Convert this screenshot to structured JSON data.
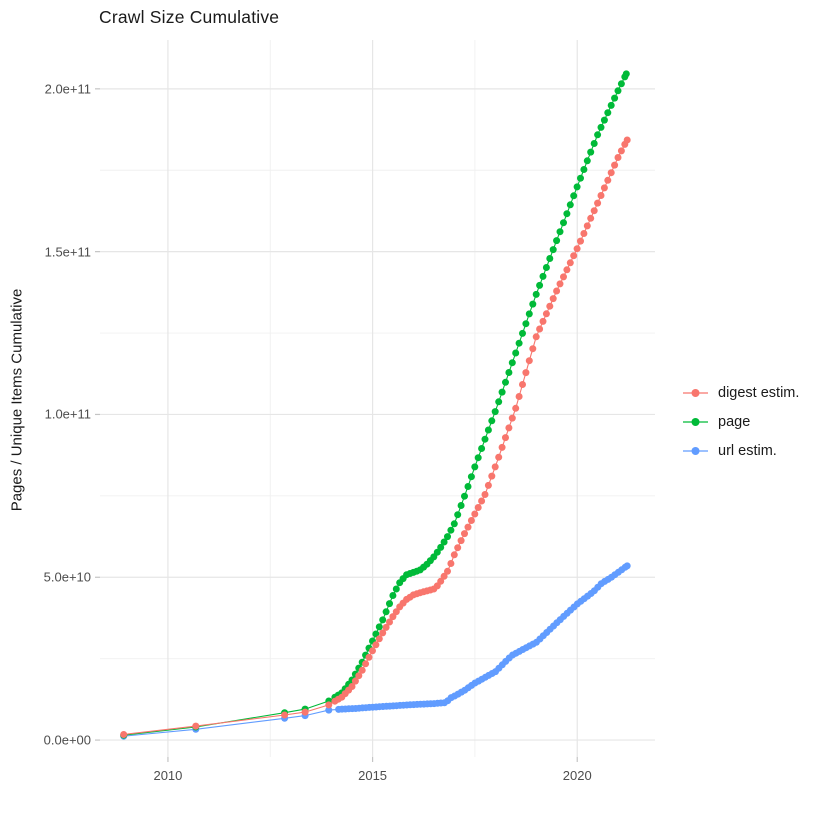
{
  "chart": {
    "title": "Crawl Size Cumulative",
    "y_axis_label": "Pages / Unique Items Cumulative",
    "x_ticks": [
      {
        "label": "2010",
        "year": 2010
      },
      {
        "label": "2015",
        "year": 2015
      },
      {
        "label": "2020",
        "year": 2020
      }
    ],
    "y_ticks": [
      {
        "label": "0.0e+00",
        "value_billion": 0
      },
      {
        "label": "5.0e+10",
        "value_billion": 50
      },
      {
        "label": "1.0e+11",
        "value_billion": 100
      },
      {
        "label": "1.5e+11",
        "value_billion": 150
      },
      {
        "label": "2.0e+11",
        "value_billion": 200
      }
    ],
    "legend": [
      {
        "label": "digest estim.",
        "color": "#F8766D"
      },
      {
        "label": "page",
        "color": "#00BA38"
      },
      {
        "label": "url estim.",
        "color": "#619CFF"
      }
    ]
  },
  "chart_data": {
    "type": "scatter",
    "subtype": "line+point cumulative time series",
    "title": "Crawl Size Cumulative",
    "xlabel": "",
    "ylabel": "Pages / Unique Items Cumulative",
    "x_unit": "year",
    "y_unit": "count (billions, 1 = 1e9)",
    "xlim": [
      2008.34,
      2021.9
    ],
    "ylim_billion": [
      -5.2,
      215
    ],
    "grid": true,
    "legend_position": "right",
    "x_major_gridlines": [
      2010,
      2015,
      2020
    ],
    "x_minor_gridlines": [
      2012.5,
      2017.5
    ],
    "y_major_gridlines_billion": [
      0,
      50,
      100,
      150,
      200
    ],
    "y_minor_gridlines_billion": [
      25,
      75,
      125,
      175
    ],
    "point_cadence": "sparse yearly crawls before 2014, then one point per month interpolated along anchor readings",
    "series": [
      {
        "name": "url estim.",
        "color": "#619CFF",
        "monthly_dots_from": 2014.17,
        "anchor_points_year_billion": [
          [
            2008.92,
            1.2
          ],
          [
            2010.68,
            3.3
          ],
          [
            2012.85,
            6.7
          ],
          [
            2013.35,
            7.5
          ],
          [
            2013.93,
            9.2
          ],
          [
            2014.25,
            9.5
          ],
          [
            2014.58,
            9.7
          ],
          [
            2015.0,
            10.1
          ],
          [
            2015.5,
            10.5
          ],
          [
            2016.0,
            10.9
          ],
          [
            2016.5,
            11.2
          ],
          [
            2016.8,
            11.5
          ],
          [
            2016.88,
            12.8
          ],
          [
            2017.0,
            13.5
          ],
          [
            2017.25,
            15.3
          ],
          [
            2017.5,
            17.5
          ],
          [
            2018.0,
            21.0
          ],
          [
            2018.4,
            26.0
          ],
          [
            2019.0,
            30.0
          ],
          [
            2019.5,
            36.0
          ],
          [
            2020.0,
            41.8
          ],
          [
            2020.4,
            45.6
          ],
          [
            2020.6,
            48.2
          ],
          [
            2020.8,
            49.7
          ],
          [
            2021.0,
            51.5
          ],
          [
            2021.22,
            53.5
          ]
        ]
      },
      {
        "name": "page",
        "color": "#00BA38",
        "monthly_dots_from": 2014.08,
        "anchor_points_year_billion": [
          [
            2008.92,
            1.5
          ],
          [
            2010.68,
            4.0
          ],
          [
            2012.85,
            8.4
          ],
          [
            2013.35,
            9.5
          ],
          [
            2013.93,
            12.0
          ],
          [
            2014.25,
            14.5
          ],
          [
            2014.5,
            18.5
          ],
          [
            2014.75,
            24.0
          ],
          [
            2015.0,
            30.5
          ],
          [
            2015.25,
            37.0
          ],
          [
            2015.5,
            44.5
          ],
          [
            2015.67,
            48.5
          ],
          [
            2015.83,
            50.8
          ],
          [
            2016.0,
            51.5
          ],
          [
            2016.17,
            52.3
          ],
          [
            2016.33,
            54.0
          ],
          [
            2016.5,
            56.3
          ],
          [
            2016.67,
            59.3
          ],
          [
            2016.83,
            62.5
          ],
          [
            2017.0,
            66.5
          ],
          [
            2017.25,
            75.0
          ],
          [
            2017.5,
            84.0
          ],
          [
            2017.75,
            92.5
          ],
          [
            2018.0,
            101.0
          ],
          [
            2018.5,
            119.0
          ],
          [
            2019.0,
            137.0
          ],
          [
            2019.5,
            153.5
          ],
          [
            2020.0,
            170.0
          ],
          [
            2020.5,
            186.0
          ],
          [
            2021.0,
            199.5
          ],
          [
            2021.2,
            204.6
          ]
        ]
      },
      {
        "name": "digest estim.",
        "color": "#F8766D",
        "monthly_dots_from": 2014.08,
        "anchor_points_year_billion": [
          [
            2008.92,
            1.7
          ],
          [
            2010.68,
            4.3
          ],
          [
            2012.85,
            7.7
          ],
          [
            2013.35,
            8.6
          ],
          [
            2013.93,
            10.8
          ],
          [
            2014.25,
            13.2
          ],
          [
            2014.5,
            16.5
          ],
          [
            2014.75,
            21.5
          ],
          [
            2015.0,
            27.5
          ],
          [
            2015.25,
            33.0
          ],
          [
            2015.5,
            38.0
          ],
          [
            2015.67,
            41.0
          ],
          [
            2015.83,
            43.2
          ],
          [
            2016.0,
            44.6
          ],
          [
            2016.17,
            45.3
          ],
          [
            2016.33,
            45.8
          ],
          [
            2016.5,
            46.4
          ],
          [
            2016.6,
            47.6
          ],
          [
            2016.85,
            52.2
          ],
          [
            2017.0,
            57.0
          ],
          [
            2017.25,
            63.5
          ],
          [
            2017.5,
            69.5
          ],
          [
            2017.75,
            75.5
          ],
          [
            2018.0,
            84.0
          ],
          [
            2018.5,
            102.0
          ],
          [
            2019.0,
            124.0
          ],
          [
            2019.5,
            138.0
          ],
          [
            2020.0,
            151.0
          ],
          [
            2020.5,
            165.0
          ],
          [
            2021.0,
            179.0
          ],
          [
            2021.22,
            184.3
          ]
        ]
      }
    ]
  }
}
